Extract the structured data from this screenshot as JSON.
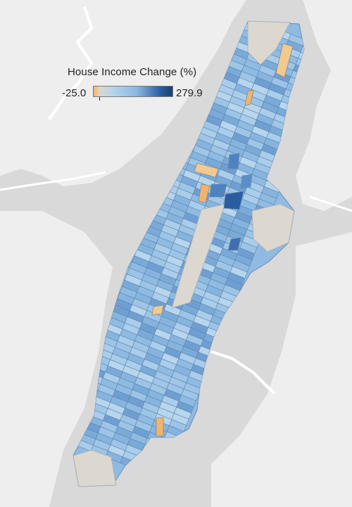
{
  "legend": {
    "title": "House Income Change (%)",
    "min_label": "-25.0",
    "max_label": "279.9",
    "min_value": -25.0,
    "max_value": 279.9,
    "zero_marker_value": 0,
    "colors": {
      "negative": "#f2b36b",
      "neutral": "#ddd7cc",
      "light_blue": "#b4d4ec",
      "mid_blue": "#8bb7e0",
      "dark_blue": "#2a5da0",
      "darkest_blue": "#1f3f6e"
    }
  },
  "map": {
    "background_color": "#d9d9d9",
    "land_color": "#f0f0f0",
    "water_color": "#d6d6d6",
    "park_color": "#dcd8cf",
    "area": "Manhattan"
  }
}
